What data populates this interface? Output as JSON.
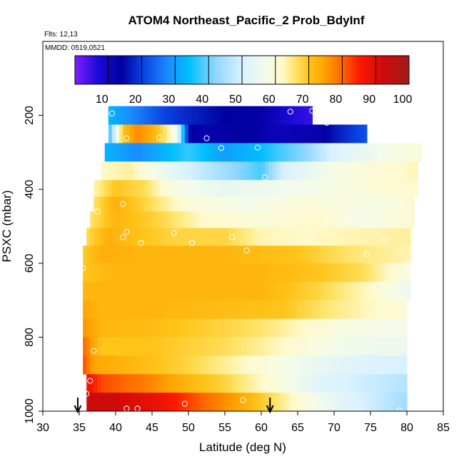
{
  "chart_data": {
    "type": "heatmap",
    "title": "ATOM4 Northeast_Pacific_2 Prob_BdyInf",
    "flights_label": "Flts: 12,13",
    "date_label": "MMDD: 0519,0521",
    "xlabel": "Latitude (deg N)",
    "ylabel": "PSXC (mbar)",
    "xlim": [
      30,
      85
    ],
    "ylim": [
      1000,
      0
    ],
    "x_ticks": [
      "30",
      "35",
      "40",
      "45",
      "50",
      "55",
      "60",
      "65",
      "70",
      "75",
      "80",
      "85"
    ],
    "y_ticks": [
      "200",
      "400",
      "600",
      "800",
      "1000"
    ],
    "colorbar": {
      "range": [
        0,
        100
      ],
      "tick_labels": [
        "10",
        "20",
        "30",
        "40",
        "50",
        "60",
        "70",
        "80",
        "90",
        "100"
      ],
      "stops": [
        {
          "v": 0,
          "c": "#7f1fff"
        },
        {
          "v": 7,
          "c": "#1a0ad8"
        },
        {
          "v": 14,
          "c": "#00009e"
        },
        {
          "v": 20,
          "c": "#0a3fe0"
        },
        {
          "v": 28,
          "c": "#1a8cff"
        },
        {
          "v": 34,
          "c": "#00bfff"
        },
        {
          "v": 42,
          "c": "#8fd6ff"
        },
        {
          "v": 50,
          "c": "#d8f1ff"
        },
        {
          "v": 57,
          "c": "#f4fbe9"
        },
        {
          "v": 62,
          "c": "#fffacd"
        },
        {
          "v": 66,
          "c": "#ffe46b"
        },
        {
          "v": 70,
          "c": "#ffc41a"
        },
        {
          "v": 75,
          "c": "#ff9f00"
        },
        {
          "v": 80,
          "c": "#ff6600"
        },
        {
          "v": 85,
          "c": "#ff1a00"
        },
        {
          "v": 92,
          "c": "#d00a0a"
        },
        {
          "v": 100,
          "c": "#a21a1a"
        }
      ]
    },
    "rows": [
      {
        "p": 200,
        "x0": 39,
        "x1": 67,
        "pts": [
          [
            39,
            33
          ],
          [
            47,
            20
          ],
          [
            55,
            14
          ],
          [
            60,
            13
          ],
          [
            64,
            7
          ],
          [
            67,
            5
          ]
        ]
      },
      {
        "p": 250,
        "x0": 39,
        "x1": 74.5,
        "pts": [
          [
            39,
            35
          ],
          [
            41,
            70
          ],
          [
            43,
            77
          ],
          [
            45,
            73
          ],
          [
            47,
            65
          ],
          [
            48.5,
            55
          ],
          [
            50,
            15
          ],
          [
            52,
            12
          ],
          [
            58,
            14
          ],
          [
            62,
            11
          ],
          [
            68,
            12
          ],
          [
            70,
            16
          ],
          [
            74.5,
            22
          ]
        ]
      },
      {
        "p": 300,
        "x0": 38.5,
        "x1": 82,
        "pts": [
          [
            38.5,
            33
          ],
          [
            43,
            28
          ],
          [
            50,
            37
          ],
          [
            55,
            30
          ],
          [
            60,
            34
          ],
          [
            62,
            37
          ],
          [
            66,
            42
          ],
          [
            70,
            51
          ],
          [
            76,
            56
          ],
          [
            82,
            60
          ]
        ]
      },
      {
        "p": 350,
        "x0": 38,
        "x1": 81.5,
        "pts": [
          [
            38,
            62
          ],
          [
            42,
            64
          ],
          [
            46,
            56
          ],
          [
            50,
            50
          ],
          [
            55,
            44
          ],
          [
            60,
            38
          ],
          [
            63,
            50
          ],
          [
            70,
            58
          ],
          [
            81.5,
            63
          ]
        ]
      },
      {
        "p": 400,
        "x0": 37,
        "x1": 81.5,
        "pts": [
          [
            37,
            63
          ],
          [
            40,
            70
          ],
          [
            44,
            67
          ],
          [
            48,
            58
          ],
          [
            55,
            54
          ],
          [
            62,
            56
          ],
          [
            70,
            58
          ],
          [
            81.5,
            62
          ]
        ]
      },
      {
        "p": 440,
        "x0": 37,
        "x1": 81,
        "pts": [
          [
            37,
            66
          ],
          [
            40,
            73
          ],
          [
            44,
            68
          ],
          [
            50,
            60
          ],
          [
            58,
            57
          ],
          [
            66,
            60
          ],
          [
            75,
            58
          ],
          [
            81,
            60
          ]
        ]
      },
      {
        "p": 480,
        "x0": 36.5,
        "x1": 81,
        "pts": [
          [
            36.5,
            66
          ],
          [
            40,
            72
          ],
          [
            46,
            68
          ],
          [
            52,
            62
          ],
          [
            60,
            60
          ],
          [
            68,
            62
          ],
          [
            74,
            57
          ],
          [
            81,
            61
          ]
        ]
      },
      {
        "p": 530,
        "x0": 36,
        "x1": 80.5,
        "pts": [
          [
            36,
            67
          ],
          [
            39,
            73
          ],
          [
            42,
            71
          ],
          [
            48,
            68
          ],
          [
            55,
            68
          ],
          [
            60,
            63
          ],
          [
            66,
            62
          ],
          [
            72,
            63
          ],
          [
            80.5,
            64
          ]
        ]
      },
      {
        "p": 575,
        "x0": 35.5,
        "x1": 80.5,
        "pts": [
          [
            35.5,
            69
          ],
          [
            38,
            73
          ],
          [
            45,
            72
          ],
          [
            55,
            72
          ],
          [
            65,
            70
          ],
          [
            72,
            66
          ],
          [
            80.5,
            63
          ]
        ]
      },
      {
        "p": 625,
        "x0": 35.5,
        "x1": 80.5,
        "pts": [
          [
            35.5,
            70
          ],
          [
            40,
            72
          ],
          [
            50,
            72
          ],
          [
            60,
            72
          ],
          [
            68,
            70
          ],
          [
            74,
            67
          ],
          [
            80.5,
            58
          ]
        ]
      },
      {
        "p": 675,
        "x0": 35.5,
        "x1": 80.5,
        "pts": [
          [
            35.5,
            72
          ],
          [
            40,
            72
          ],
          [
            50,
            72
          ],
          [
            60,
            72
          ],
          [
            68,
            68
          ],
          [
            75,
            62
          ],
          [
            80.5,
            55
          ]
        ]
      },
      {
        "p": 725,
        "x0": 35.5,
        "x1": 80,
        "pts": [
          [
            35.5,
            74
          ],
          [
            38,
            72
          ],
          [
            45,
            72
          ],
          [
            55,
            71
          ],
          [
            63,
            70
          ],
          [
            70,
            65
          ],
          [
            80,
            60
          ]
        ]
      },
      {
        "p": 775,
        "x0": 35.5,
        "x1": 80,
        "pts": [
          [
            35.5,
            76
          ],
          [
            38,
            72
          ],
          [
            45,
            71
          ],
          [
            55,
            68
          ],
          [
            60,
            66
          ],
          [
            66,
            62
          ],
          [
            72,
            58
          ],
          [
            80,
            57
          ]
        ]
      },
      {
        "p": 825,
        "x0": 35.5,
        "x1": 80,
        "pts": [
          [
            35.5,
            80
          ],
          [
            38,
            70
          ],
          [
            45,
            70
          ],
          [
            55,
            67
          ],
          [
            60,
            64
          ],
          [
            66,
            60
          ],
          [
            72,
            56
          ],
          [
            80,
            55
          ]
        ]
      },
      {
        "p": 875,
        "x0": 35.5,
        "x1": 80,
        "pts": [
          [
            35.5,
            82
          ],
          [
            37,
            74
          ],
          [
            42,
            72
          ],
          [
            50,
            68
          ],
          [
            58,
            62
          ],
          [
            65,
            56
          ],
          [
            72,
            52
          ],
          [
            80,
            50
          ]
        ]
      },
      {
        "p": 925,
        "x0": 36,
        "x1": 80,
        "pts": [
          [
            36,
            88
          ],
          [
            38,
            82
          ],
          [
            44,
            78
          ],
          [
            50,
            72
          ],
          [
            55,
            68
          ],
          [
            62,
            60
          ],
          [
            68,
            52
          ],
          [
            80,
            46
          ]
        ]
      },
      {
        "p": 975,
        "x0": 36,
        "x1": 80,
        "pts": [
          [
            36,
            93
          ],
          [
            40,
            92
          ],
          [
            46,
            88
          ],
          [
            52,
            80
          ],
          [
            57,
            74
          ],
          [
            62,
            66
          ],
          [
            68,
            56
          ],
          [
            80,
            44
          ]
        ]
      },
      {
        "p": 1025,
        "x0": 41.5,
        "x1": 80,
        "pts": [
          [
            41.5,
            70
          ],
          [
            44,
            76
          ],
          [
            47,
            86
          ],
          [
            50,
            94
          ],
          [
            54,
            98
          ],
          [
            60,
            98
          ],
          [
            62,
            84
          ],
          [
            64,
            72
          ],
          [
            66,
            62
          ],
          [
            70,
            50
          ],
          [
            76,
            45
          ],
          [
            80,
            40
          ]
        ]
      }
    ],
    "markers": [
      [
        39.5,
        195
      ],
      [
        64,
        190
      ],
      [
        67,
        188
      ],
      [
        69,
        220
      ],
      [
        46,
        260
      ],
      [
        52.5,
        262
      ],
      [
        41.5,
        262
      ],
      [
        54.5,
        288
      ],
      [
        59.5,
        287
      ],
      [
        76,
        303
      ],
      [
        60.5,
        368
      ],
      [
        37.5,
        460
      ],
      [
        41,
        440
      ],
      [
        41.5,
        515
      ],
      [
        41,
        530
      ],
      [
        43.5,
        545
      ],
      [
        48,
        518
      ],
      [
        50.5,
        545
      ],
      [
        56,
        530
      ],
      [
        58,
        565
      ],
      [
        72,
        485
      ],
      [
        77,
        535
      ],
      [
        74.5,
        575
      ],
      [
        80,
        600
      ],
      [
        35.5,
        613
      ],
      [
        37,
        837
      ],
      [
        36.5,
        918
      ],
      [
        36,
        953
      ],
      [
        41.5,
        993
      ],
      [
        43,
        993
      ],
      [
        49.5,
        980
      ],
      [
        57.5,
        970
      ],
      [
        73.5,
        998
      ],
      [
        79,
        998
      ]
    ],
    "arrows_lat": [
      34.8,
      61.2
    ]
  }
}
